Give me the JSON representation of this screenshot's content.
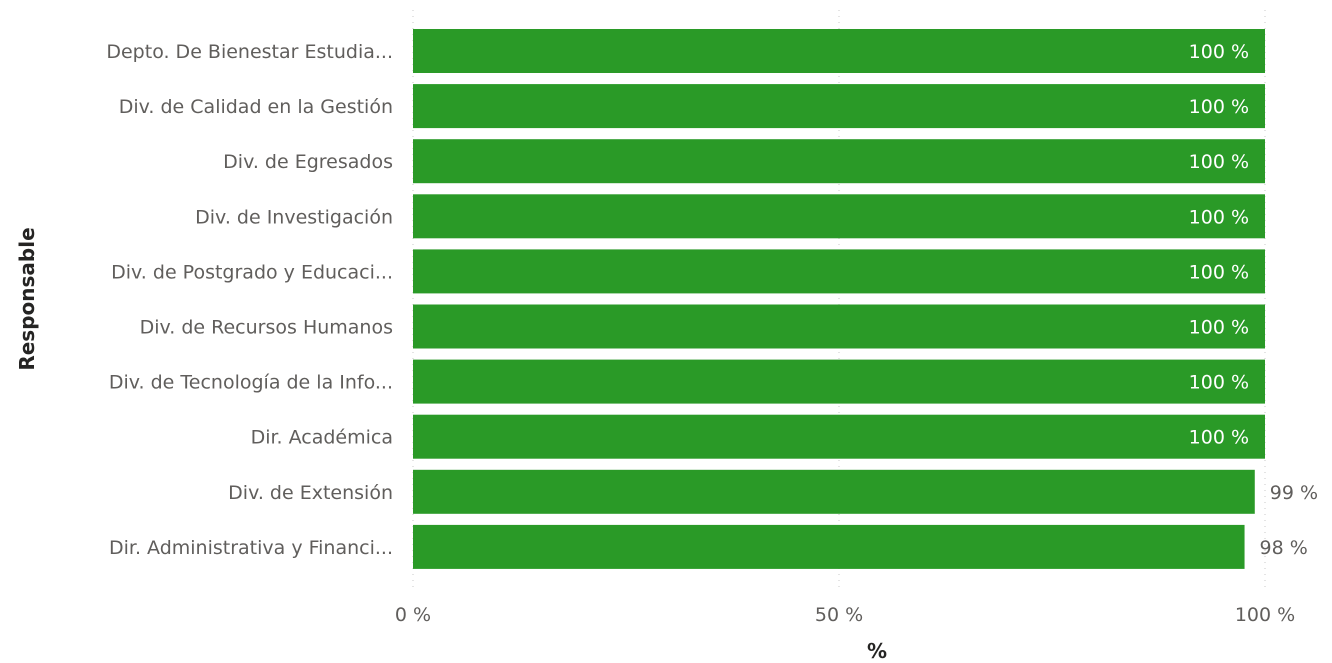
{
  "chart_data": {
    "type": "bar",
    "orientation": "horizontal",
    "categories": [
      "Depto. De Bienestar Estudia...",
      "Div. de Calidad en la Gestión",
      "Div. de Egresados",
      "Div. de Investigación",
      "Div. de Postgrado y Educaci...",
      "Div. de Recursos Humanos",
      "Div. de Tecnología de la Info...",
      "Dir. Académica",
      "Div. de Extensión",
      "Dir. Administrativa y Financi..."
    ],
    "values": [
      100,
      100,
      100,
      100,
      100,
      100,
      100,
      100,
      98.8,
      97.6
    ],
    "data_labels": [
      "100 %",
      "100 %",
      "100 %",
      "100 %",
      "100 %",
      "100 %",
      "100 %",
      "100 %",
      "99 %",
      "98 %"
    ],
    "xlabel": "%",
    "ylabel": "Responsable",
    "xlim": [
      0,
      100
    ],
    "x_ticks": [
      {
        "value": 0,
        "label": "0 %"
      },
      {
        "value": 50,
        "label": "50 %"
      },
      {
        "value": 100,
        "label": "100 %"
      }
    ],
    "grid": "vertical dotted",
    "bar_color": "#2a9a27",
    "legend": "none"
  }
}
